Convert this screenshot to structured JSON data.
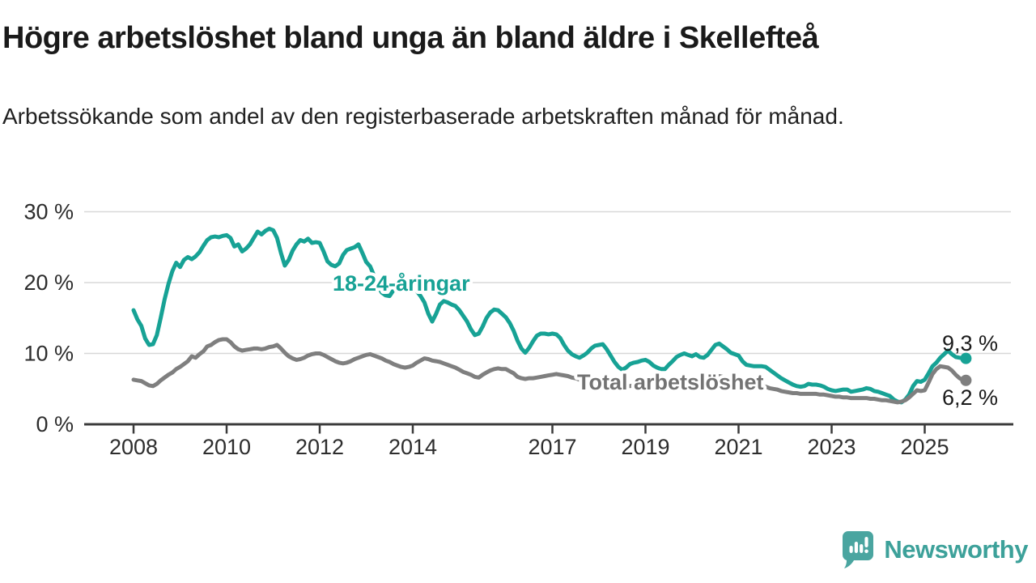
{
  "header": {
    "title": "Högre arbetslöshet bland unga än bland äldre i Skellefteå",
    "subtitle": "Arbetssökande som andel av den registerbaserade arbetskraften månad för månad."
  },
  "branding": {
    "logo_text": "Newsworthy",
    "logo_icon": "speech-bubble-bar-chart",
    "logo_color": "#3da19a",
    "logo_bubble_color": "#4aa5a0"
  },
  "chart_data": {
    "type": "line",
    "unit": "%",
    "grid": true,
    "x_start_year": 2008.0,
    "step_months": 1,
    "ylim": [
      0,
      30
    ],
    "y_ticks": [
      {
        "v": 0,
        "label": "0 %"
      },
      {
        "v": 10,
        "label": "10 %"
      },
      {
        "v": 20,
        "label": "20 %"
      },
      {
        "v": 30,
        "label": "30 %"
      }
    ],
    "x_ticks": [
      {
        "v": 2008,
        "label": "2008"
      },
      {
        "v": 2010,
        "label": "2010"
      },
      {
        "v": 2012,
        "label": "2012"
      },
      {
        "v": 2014,
        "label": "2014"
      },
      {
        "v": 2017,
        "label": "2017"
      },
      {
        "v": 2019,
        "label": "2019"
      },
      {
        "v": 2021,
        "label": "2021"
      },
      {
        "v": 2023,
        "label": "2023"
      },
      {
        "v": 2025,
        "label": "2025"
      }
    ],
    "colors": {
      "grid": "#d8d8d8",
      "axis": "#3b3b3b",
      "tick_text": "#2d2d2d",
      "value_label": "#1a1a1a"
    },
    "series": [
      {
        "name": "18-24-åringar",
        "color": "#17a295",
        "label_color": "#17a295",
        "end_label": "9,3 %",
        "last_value": 9.3,
        "values": [
          16.1,
          14.8,
          13.9,
          12.1,
          11.2,
          11.3,
          12.6,
          15.0,
          17.6,
          19.8,
          21.6,
          22.8,
          22.2,
          23.2,
          23.6,
          23.3,
          23.7,
          24.3,
          25.2,
          26.0,
          26.4,
          26.5,
          26.4,
          26.6,
          26.7,
          26.3,
          25.1,
          25.4,
          24.4,
          24.8,
          25.4,
          26.3,
          27.2,
          26.8,
          27.3,
          27.6,
          27.4,
          26.3,
          24.2,
          22.4,
          23.2,
          24.5,
          25.4,
          26.0,
          25.8,
          26.2,
          25.6,
          25.7,
          25.6,
          24.4,
          23.0,
          22.5,
          22.3,
          22.7,
          23.9,
          24.6,
          24.8,
          25.0,
          25.4,
          24.2,
          22.9,
          22.3,
          21.0,
          19.5,
          18.6,
          18.2,
          18.1,
          18.9,
          20.0,
          20.8,
          20.6,
          20.0,
          19.4,
          18.8,
          18.1,
          17.2,
          15.6,
          14.5,
          15.6,
          16.9,
          17.4,
          17.2,
          16.9,
          16.7,
          16.1,
          15.3,
          14.5,
          13.4,
          12.6,
          12.8,
          13.8,
          15.0,
          15.8,
          16.2,
          16.1,
          15.6,
          15.1,
          14.3,
          13.2,
          11.8,
          10.7,
          10.1,
          10.8,
          11.7,
          12.5,
          12.8,
          12.8,
          12.7,
          12.8,
          12.7,
          12.2,
          11.2,
          10.4,
          9.9,
          9.6,
          9.4,
          9.7,
          10.1,
          10.7,
          11.1,
          11.2,
          11.3,
          10.6,
          9.7,
          8.8,
          8.1,
          7.7,
          8.0,
          8.5,
          8.7,
          8.8,
          9.0,
          9.1,
          8.8,
          8.3,
          8.0,
          7.8,
          7.8,
          8.4,
          8.9,
          9.5,
          9.8,
          10.0,
          9.8,
          9.6,
          9.9,
          9.5,
          9.4,
          9.8,
          10.5,
          11.2,
          11.4,
          11.0,
          10.6,
          10.1,
          9.9,
          9.7,
          8.9,
          8.4,
          8.3,
          8.2,
          8.2,
          8.2,
          8.1,
          7.7,
          7.3,
          6.9,
          6.5,
          6.2,
          5.9,
          5.6,
          5.4,
          5.3,
          5.4,
          5.7,
          5.6,
          5.6,
          5.5,
          5.3,
          5.0,
          4.8,
          4.7,
          4.8,
          4.9,
          4.9,
          4.6,
          4.7,
          4.8,
          4.9,
          5.1,
          5.0,
          4.7,
          4.6,
          4.4,
          4.2,
          4.0,
          3.5,
          3.2,
          3.1,
          3.5,
          4.2,
          5.4,
          6.1,
          6.0,
          6.3,
          7.2,
          8.2,
          8.7,
          9.4,
          9.9,
          10.4,
          9.9,
          9.5,
          9.4,
          9.3
        ]
      },
      {
        "name": "Total arbetslöshet",
        "color": "#7f7f7f",
        "label_color": "#737373",
        "end_label": "6,2 %",
        "last_value": 6.2,
        "values": [
          6.3,
          6.2,
          6.1,
          5.8,
          5.5,
          5.4,
          5.7,
          6.2,
          6.6,
          7.0,
          7.3,
          7.8,
          8.1,
          8.5,
          8.9,
          9.6,
          9.4,
          9.9,
          10.3,
          11.0,
          11.2,
          11.6,
          11.9,
          12.0,
          12.0,
          11.6,
          11.0,
          10.6,
          10.4,
          10.5,
          10.6,
          10.7,
          10.7,
          10.6,
          10.7,
          10.9,
          11.0,
          11.2,
          10.7,
          10.1,
          9.6,
          9.3,
          9.1,
          9.2,
          9.4,
          9.7,
          9.9,
          10.0,
          10.0,
          9.8,
          9.5,
          9.2,
          8.9,
          8.7,
          8.6,
          8.7,
          8.9,
          9.2,
          9.4,
          9.6,
          9.8,
          9.9,
          9.7,
          9.5,
          9.3,
          9.0,
          8.8,
          8.5,
          8.3,
          8.1,
          8.0,
          8.1,
          8.3,
          8.7,
          9.0,
          9.3,
          9.2,
          9.0,
          8.9,
          8.8,
          8.6,
          8.4,
          8.2,
          8.0,
          7.7,
          7.4,
          7.2,
          7.0,
          6.7,
          6.6,
          7.0,
          7.3,
          7.6,
          7.8,
          7.9,
          7.8,
          7.8,
          7.5,
          7.2,
          6.7,
          6.5,
          6.4,
          6.5,
          6.5,
          6.6,
          6.7,
          6.8,
          6.9,
          7.0,
          7.1,
          7.0,
          6.9,
          6.8,
          6.6,
          6.5,
          6.3,
          6.1,
          6.0,
          5.9,
          5.8,
          5.7,
          5.6,
          5.5,
          5.4,
          5.4,
          5.3,
          5.3,
          5.4,
          5.4,
          5.5,
          5.5,
          5.5,
          5.5,
          5.4,
          5.4,
          5.3,
          5.3,
          5.3,
          5.4,
          5.4,
          5.5,
          5.5,
          5.6,
          5.6,
          5.7,
          5.8,
          6.0,
          6.3,
          6.5,
          6.7,
          6.8,
          6.8,
          6.7,
          6.6,
          6.5,
          6.4,
          6.3,
          6.1,
          6.0,
          5.8,
          5.7,
          5.6,
          5.4,
          5.3,
          5.1,
          5.0,
          4.9,
          4.7,
          4.6,
          4.5,
          4.4,
          4.4,
          4.3,
          4.3,
          4.3,
          4.3,
          4.3,
          4.2,
          4.2,
          4.1,
          4.0,
          3.9,
          3.9,
          3.8,
          3.8,
          3.7,
          3.7,
          3.7,
          3.7,
          3.7,
          3.6,
          3.6,
          3.5,
          3.4,
          3.4,
          3.3,
          3.2,
          3.1,
          3.2,
          3.4,
          3.8,
          4.3,
          4.8,
          4.7,
          4.8,
          5.9,
          7.1,
          7.8,
          8.2,
          8.1,
          8.0,
          7.6,
          7.0,
          6.5,
          6.2
        ]
      }
    ]
  }
}
